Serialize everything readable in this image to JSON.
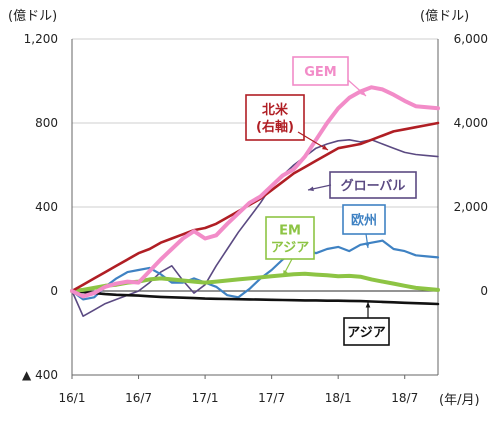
{
  "chart_data": {
    "type": "line",
    "left_axis_unit": "(億ドル)",
    "right_axis_unit": "(億ドル)",
    "x_axis_unit": "(年/月)",
    "x_tick_labels": [
      "16/1",
      "16/7",
      "17/1",
      "17/7",
      "18/1",
      "18/7"
    ],
    "x_tick_positions": [
      0,
      6,
      12,
      18,
      24,
      30
    ],
    "x_range": [
      0,
      33
    ],
    "left_ylim": [
      -400,
      1200
    ],
    "left_tick_values": [
      1200,
      800,
      400,
      0,
      -400
    ],
    "left_tick_labels": [
      "1,200",
      "800",
      "400",
      "0",
      "▲ 400"
    ],
    "right_ylim": [
      -2000,
      6000
    ],
    "right_tick_values": [
      6000,
      4000,
      2000,
      0
    ],
    "right_tick_labels": [
      "6,000",
      "4,000",
      "2,000",
      "0"
    ],
    "gridlines": "horizontal",
    "series": [
      {
        "name": "GEM",
        "color": "#f28cc8",
        "axis": "left",
        "label": "GEM",
        "x": [
          0,
          1,
          2,
          3,
          4,
          5,
          6,
          7,
          8,
          9,
          10,
          11,
          12,
          13,
          14,
          15,
          16,
          17,
          18,
          19,
          20,
          21,
          22,
          23,
          24,
          25,
          26,
          27,
          28,
          29,
          30,
          31,
          32,
          33
        ],
        "values": [
          0,
          -25,
          -10,
          20,
          35,
          45,
          40,
          95,
          150,
          200,
          250,
          285,
          250,
          265,
          320,
          370,
          420,
          450,
          500,
          550,
          580,
          640,
          720,
          800,
          870,
          920,
          950,
          970,
          960,
          935,
          905,
          880,
          875,
          870
        ]
      },
      {
        "name": "北米（右軸）",
        "color": "#b01e24",
        "axis": "right",
        "label": "北米 (右軸)",
        "x": [
          0,
          1,
          2,
          3,
          4,
          5,
          6,
          7,
          8,
          9,
          10,
          11,
          12,
          13,
          14,
          15,
          16,
          17,
          18,
          19,
          20,
          21,
          22,
          23,
          24,
          25,
          26,
          27,
          28,
          29,
          30,
          31,
          32,
          33
        ],
        "values": [
          0,
          150,
          300,
          450,
          600,
          750,
          900,
          1000,
          1150,
          1250,
          1350,
          1450,
          1500,
          1600,
          1750,
          1900,
          2050,
          2200,
          2400,
          2600,
          2800,
          2950,
          3100,
          3250,
          3400,
          3450,
          3500,
          3600,
          3700,
          3800,
          3850,
          3900,
          3950,
          4000
        ]
      },
      {
        "name": "グローバル",
        "color": "#5b4a82",
        "axis": "left",
        "label": "グローバル",
        "x": [
          0,
          1,
          2,
          3,
          4,
          5,
          6,
          7,
          8,
          9,
          10,
          11,
          12,
          13,
          14,
          15,
          16,
          17,
          18,
          19,
          20,
          21,
          22,
          23,
          24,
          25,
          26,
          27,
          28,
          29,
          30,
          31,
          32,
          33
        ],
        "values": [
          0,
          -120,
          -90,
          -60,
          -40,
          -20,
          0,
          40,
          90,
          120,
          50,
          -10,
          30,
          120,
          200,
          280,
          350,
          420,
          500,
          550,
          600,
          640,
          680,
          700,
          715,
          720,
          710,
          720,
          700,
          680,
          660,
          650,
          645,
          640
        ]
      },
      {
        "name": "欧州",
        "color": "#3f82c3",
        "axis": "left",
        "label": "欧州",
        "x": [
          0,
          1,
          2,
          3,
          4,
          5,
          6,
          7,
          8,
          9,
          10,
          11,
          12,
          13,
          14,
          15,
          16,
          17,
          18,
          19,
          20,
          21,
          22,
          23,
          24,
          25,
          26,
          27,
          28,
          29,
          30,
          31,
          32,
          33
        ],
        "values": [
          0,
          -40,
          -30,
          20,
          60,
          90,
          100,
          110,
          80,
          40,
          40,
          60,
          40,
          20,
          -20,
          -30,
          10,
          60,
          100,
          150,
          190,
          200,
          180,
          200,
          210,
          190,
          220,
          230,
          240,
          200,
          190,
          170,
          165,
          160
        ]
      },
      {
        "name": "EMアジア",
        "color": "#8dc444",
        "axis": "left",
        "label": "EM アジア",
        "x": [
          0,
          1,
          2,
          3,
          4,
          5,
          6,
          7,
          8,
          9,
          10,
          11,
          12,
          13,
          14,
          15,
          16,
          17,
          18,
          19,
          20,
          21,
          22,
          23,
          24,
          25,
          26,
          27,
          28,
          29,
          30,
          31,
          32,
          33
        ],
        "values": [
          0,
          5,
          15,
          25,
          30,
          40,
          45,
          55,
          60,
          55,
          50,
          45,
          40,
          45,
          50,
          55,
          60,
          65,
          70,
          75,
          80,
          82,
          78,
          75,
          70,
          72,
          68,
          55,
          45,
          35,
          25,
          15,
          10,
          5
        ]
      },
      {
        "name": "アジア",
        "color": "#111111",
        "axis": "left",
        "label": "アジア",
        "x": [
          0,
          1,
          2,
          3,
          4,
          5,
          6,
          7,
          8,
          9,
          10,
          11,
          12,
          13,
          14,
          15,
          16,
          17,
          18,
          19,
          20,
          21,
          22,
          23,
          24,
          25,
          26,
          27,
          28,
          29,
          30,
          31,
          32,
          33
        ],
        "values": [
          0,
          -5,
          -10,
          -15,
          -18,
          -20,
          -22,
          -25,
          -28,
          -30,
          -32,
          -34,
          -36,
          -37,
          -38,
          -39,
          -40,
          -41,
          -42,
          -43,
          -44,
          -45,
          -45,
          -46,
          -46,
          -47,
          -48,
          -50,
          -52,
          -54,
          -56,
          -58,
          -60,
          -62
        ]
      }
    ]
  }
}
